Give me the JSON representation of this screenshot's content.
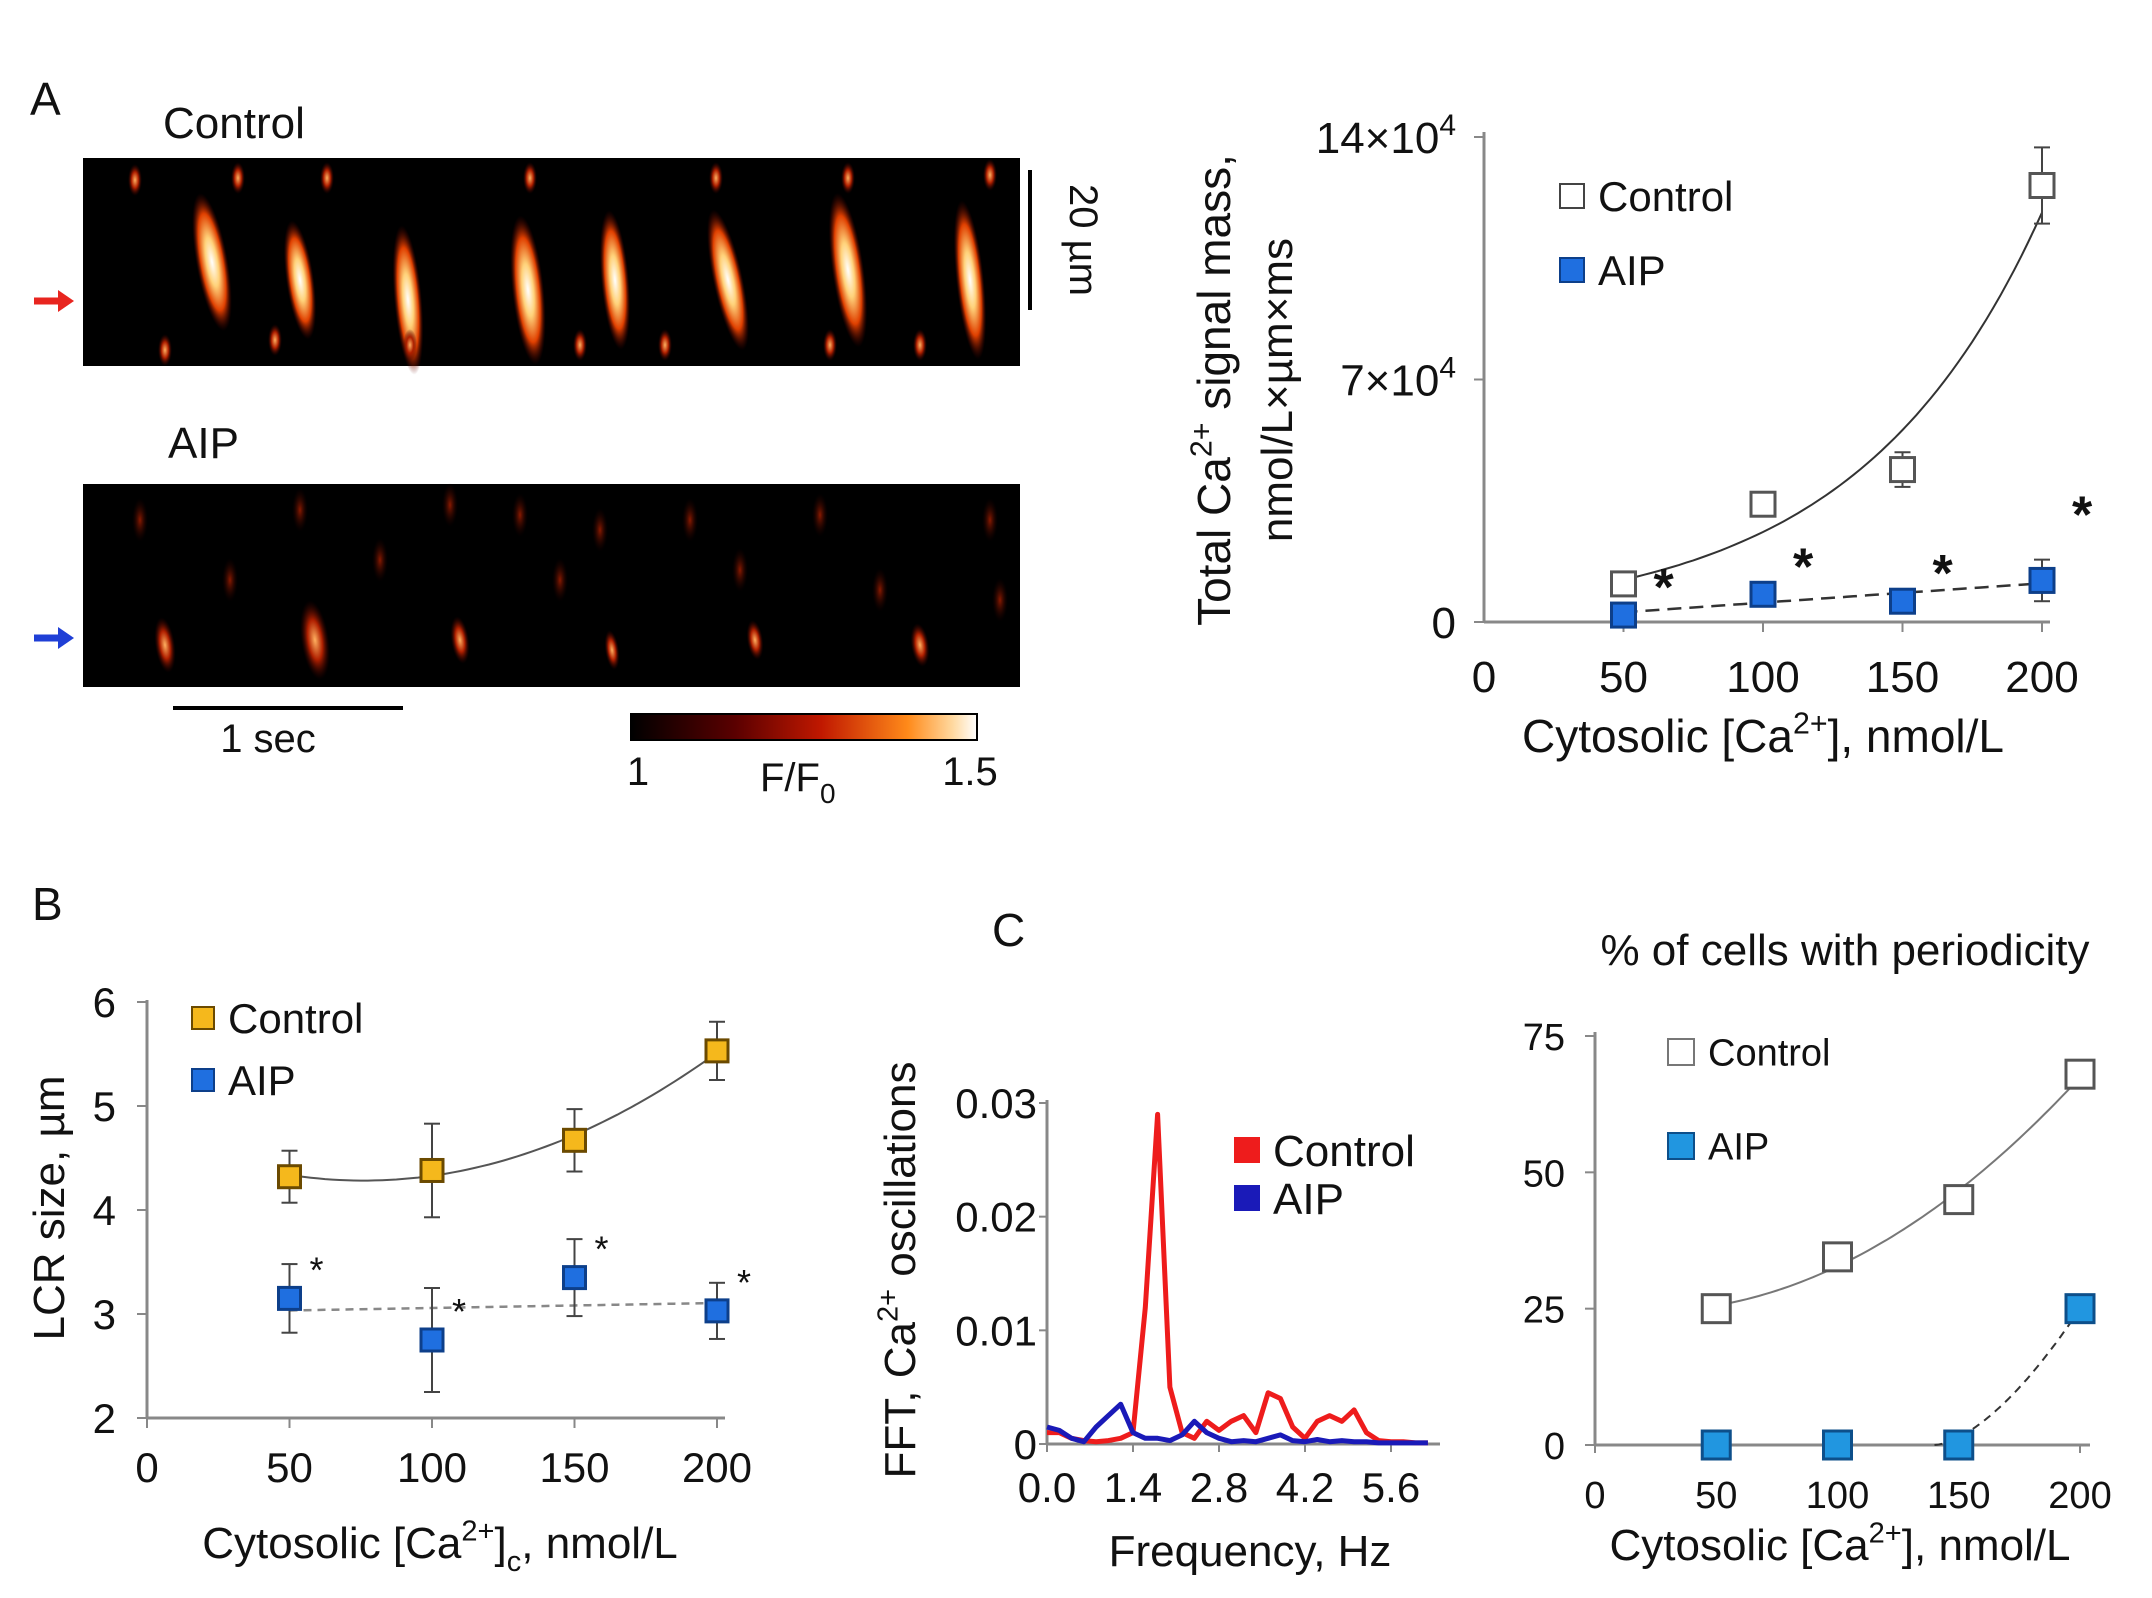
{
  "panel_labels": {
    "a": "A",
    "b": "B",
    "c": "C"
  },
  "linescan": {
    "control_label": "Control",
    "aip_label": "AIP",
    "scale_time": "1 sec",
    "scale_space": "20 µm",
    "colorbar": {
      "min": "1",
      "max": "1.5",
      "label": "F/F",
      "label_sub": "0"
    },
    "arrow_colors": {
      "control": "#e8251f",
      "aip": "#1f3fd6"
    }
  },
  "chart_data": [
    {
      "id": "A-right",
      "type": "scatter",
      "title": "",
      "xlabel": "Cytosolic [Ca2+], nmol/L",
      "ylabel_line1": "Total Ca2+ signal mass,",
      "ylabel_line2": "nmol/L×µm×ms",
      "xlim": [
        0,
        200
      ],
      "ylim": [
        0,
        140000
      ],
      "x_ticks": [
        "0",
        "50",
        "100",
        "150",
        "200"
      ],
      "y_ticks": [
        {
          "value": 0,
          "base": "0",
          "exp": ""
        },
        {
          "value": 70000,
          "base": "7×10",
          "exp": "4"
        },
        {
          "value": 140000,
          "base": "14×10",
          "exp": "4"
        }
      ],
      "series": [
        {
          "name": "Control",
          "color": "#ffffff",
          "stroke": "#555555",
          "x": [
            50,
            100,
            150,
            200
          ],
          "y": [
            11000,
            34000,
            44000,
            126000
          ],
          "err": [
            1000,
            1500,
            5000,
            11000
          ],
          "fit": "exp-solid"
        },
        {
          "name": "AIP",
          "color": "#1f6fe0",
          "stroke": "#0d3f8a",
          "x": [
            50,
            100,
            150,
            200
          ],
          "y": [
            2000,
            8000,
            6000,
            12000
          ],
          "err": [
            500,
            1000,
            1000,
            6000
          ],
          "fit": "linear-dashed",
          "significance": [
            "*",
            "*",
            "*",
            "*"
          ]
        }
      ]
    },
    {
      "id": "B",
      "type": "scatter",
      "xlabel": "Cytosolic [Ca2+]c, nmol/L",
      "ylabel": "LCR size, µm",
      "xlim": [
        0,
        200
      ],
      "ylim": [
        2,
        6
      ],
      "x_ticks": [
        "0",
        "50",
        "100",
        "150",
        "200"
      ],
      "y_ticks": [
        "2",
        "3",
        "4",
        "5",
        "6"
      ],
      "series": [
        {
          "name": "Control",
          "color": "#f5b81c",
          "stroke": "#6b4a00",
          "x": [
            50,
            100,
            150,
            200
          ],
          "y": [
            4.32,
            4.38,
            4.67,
            5.53
          ],
          "err": [
            0.25,
            0.45,
            0.3,
            0.28
          ],
          "fit": "poly-solid"
        },
        {
          "name": "AIP",
          "color": "#1f6fe0",
          "stroke": "#0d3f8a",
          "x": [
            50,
            100,
            150,
            200
          ],
          "y": [
            3.15,
            2.75,
            3.35,
            3.03
          ],
          "err": [
            0.33,
            0.5,
            0.37,
            0.27
          ],
          "fit": "linear-dashed",
          "significance": [
            "*",
            "*",
            "*",
            "*"
          ]
        }
      ]
    },
    {
      "id": "C-left",
      "type": "line",
      "xlabel": "Frequency, Hz",
      "ylabel": "FFT, Ca2+ oscillations",
      "xlim": [
        0,
        6.3
      ],
      "ylim": [
        0,
        0.03
      ],
      "x_ticks": [
        "0.0",
        "1.4",
        "2.8",
        "4.2",
        "5.6"
      ],
      "y_ticks": [
        "0",
        "0.01",
        "0.02",
        "0.03"
      ],
      "series": [
        {
          "name": "Control",
          "color": "#ee1c1c",
          "x": [
            0.0,
            0.2,
            0.4,
            0.6,
            0.8,
            1.0,
            1.2,
            1.4,
            1.6,
            1.8,
            2.0,
            2.2,
            2.4,
            2.6,
            2.8,
            3.0,
            3.2,
            3.4,
            3.6,
            3.8,
            4.0,
            4.2,
            4.4,
            4.6,
            4.8,
            5.0,
            5.2,
            5.4,
            5.6,
            5.8,
            6.0,
            6.2
          ],
          "y": [
            0.001,
            0.001,
            0.0005,
            0.0003,
            0.0002,
            0.0003,
            0.0005,
            0.001,
            0.012,
            0.029,
            0.005,
            0.001,
            0.0005,
            0.002,
            0.0012,
            0.002,
            0.0025,
            0.001,
            0.0045,
            0.004,
            0.0015,
            0.0005,
            0.002,
            0.0025,
            0.002,
            0.003,
            0.001,
            0.0003,
            0.0002,
            0.0002,
            0.0001,
            0.0001
          ]
        },
        {
          "name": "AIP",
          "color": "#1a1ab8",
          "x": [
            0.0,
            0.2,
            0.4,
            0.6,
            0.8,
            1.0,
            1.2,
            1.4,
            1.6,
            1.8,
            2.0,
            2.2,
            2.4,
            2.6,
            2.8,
            3.0,
            3.2,
            3.4,
            3.6,
            3.8,
            4.0,
            4.2,
            4.4,
            4.6,
            4.8,
            5.0,
            5.2,
            5.4,
            5.6,
            5.8,
            6.0,
            6.2
          ],
          "y": [
            0.0015,
            0.0012,
            0.0005,
            0.0002,
            0.0015,
            0.0025,
            0.0035,
            0.001,
            0.0005,
            0.0005,
            0.0003,
            0.0008,
            0.002,
            0.001,
            0.0005,
            0.0002,
            0.0003,
            0.0002,
            0.0005,
            0.0008,
            0.0003,
            0.0002,
            0.0004,
            0.0002,
            0.0003,
            0.0002,
            0.0002,
            0.0001,
            0.0001,
            0.0001,
            0.0001,
            0.0001
          ]
        }
      ]
    },
    {
      "id": "C-right",
      "type": "scatter",
      "title": "% of cells with periodicity",
      "xlabel": "Cytosolic [Ca2+], nmol/L",
      "xlim": [
        0,
        200
      ],
      "ylim": [
        0,
        75
      ],
      "x_ticks": [
        "0",
        "50",
        "100",
        "150",
        "200"
      ],
      "y_ticks": [
        "0",
        "25",
        "50",
        "75"
      ],
      "series": [
        {
          "name": "Control",
          "color": "#ffffff",
          "stroke": "#555555",
          "x": [
            50,
            100,
            150,
            200
          ],
          "y": [
            25,
            34.5,
            45,
            68
          ],
          "fit": "poly-solid"
        },
        {
          "name": "AIP",
          "color": "#2196e0",
          "stroke": "#0d4f8a",
          "x": [
            50,
            100,
            150,
            200
          ],
          "y": [
            0,
            0,
            0,
            25
          ],
          "fit": "curve-dashed"
        }
      ]
    }
  ]
}
